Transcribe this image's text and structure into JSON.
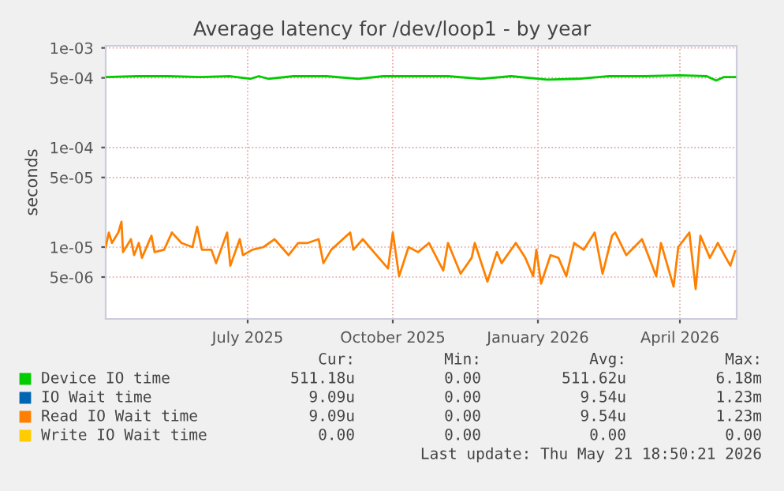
{
  "chart_data": {
    "type": "line",
    "title": "Average latency for /dev/loop1 - by year",
    "ylabel": "seconds",
    "log": "y",
    "xlim": [
      "2025-04-02",
      "2026-05-07"
    ],
    "ylim": [
      1.9e-06,
      0.00105
    ],
    "xticks": [
      {
        "value": "2025-07-01",
        "label": "July 2025"
      },
      {
        "value": "2025-10-01",
        "label": "October 2025"
      },
      {
        "value": "2026-01-01",
        "label": "January 2026"
      },
      {
        "value": "2026-04-01",
        "label": "April 2026"
      }
    ],
    "yticks": [
      {
        "value": 0.001,
        "label": "1e-03"
      },
      {
        "value": 0.0005,
        "label": "5e-04"
      },
      {
        "value": 0.0001,
        "label": "1e-04"
      },
      {
        "value": 5e-05,
        "label": "5e-05"
      },
      {
        "value": 1e-05,
        "label": "1e-05"
      },
      {
        "value": 5e-06,
        "label": "5e-06"
      }
    ],
    "grid": true,
    "legend": "bottom",
    "series": [
      {
        "name": "Device IO time",
        "color": "#00cc00",
        "x": [
          "2025-04-02",
          "2025-04-22",
          "2025-05-12",
          "2025-06-01",
          "2025-06-20",
          "2025-07-03",
          "2025-07-08",
          "2025-07-14",
          "2025-07-30",
          "2025-08-20",
          "2025-09-09",
          "2025-09-25",
          "2025-10-15",
          "2025-11-05",
          "2025-11-26",
          "2025-12-15",
          "2026-01-07",
          "2026-01-27",
          "2026-02-15",
          "2026-03-10",
          "2026-04-01",
          "2026-04-18",
          "2026-04-24",
          "2026-04-29",
          "2026-05-06"
        ],
        "values": [
          0.00051,
          0.00052,
          0.00052,
          0.00051,
          0.00052,
          0.00049,
          0.00052,
          0.00049,
          0.00052,
          0.00052,
          0.00049,
          0.00052,
          0.00052,
          0.00052,
          0.00049,
          0.00052,
          0.00048,
          0.00049,
          0.00052,
          0.00052,
          0.00053,
          0.00052,
          0.00047,
          0.00051,
          0.00051
        ]
      },
      {
        "name": "IO Wait time",
        "color": "#0066b3"
      },
      {
        "name": "Read IO Wait time",
        "color": "#ff8000",
        "x": [
          "2025-04-02",
          "2025-04-04",
          "2025-04-06",
          "2025-04-10",
          "2025-04-12",
          "2025-04-13",
          "2025-04-18",
          "2025-04-20",
          "2025-04-23",
          "2025-04-25",
          "2025-05-01",
          "2025-05-03",
          "2025-05-09",
          "2025-05-14",
          "2025-05-20",
          "2025-05-27",
          "2025-05-30",
          "2025-06-02",
          "2025-06-08",
          "2025-06-11",
          "2025-06-18",
          "2025-06-20",
          "2025-06-26",
          "2025-06-28",
          "2025-07-04",
          "2025-07-11",
          "2025-07-18",
          "2025-07-27",
          "2025-08-02",
          "2025-08-08",
          "2025-08-15",
          "2025-08-18",
          "2025-08-23",
          "2025-09-04",
          "2025-09-06",
          "2025-09-12",
          "2025-09-19",
          "2025-09-28",
          "2025-10-01",
          "2025-10-05",
          "2025-10-11",
          "2025-10-17",
          "2025-10-24",
          "2025-11-02",
          "2025-11-05",
          "2025-11-13",
          "2025-11-20",
          "2025-11-22",
          "2025-11-30",
          "2025-12-06",
          "2025-12-09",
          "2025-12-18",
          "2025-12-24",
          "2025-12-29",
          "2025-12-31",
          "2026-01-03",
          "2026-01-09",
          "2026-01-14",
          "2026-01-19",
          "2026-01-24",
          "2026-01-30",
          "2026-02-06",
          "2026-02-11",
          "2026-02-17",
          "2026-02-19",
          "2026-02-26",
          "2026-03-08",
          "2026-03-17",
          "2026-03-20",
          "2026-03-28",
          "2026-03-31",
          "2026-04-07",
          "2026-04-11",
          "2026-04-14",
          "2026-04-20",
          "2026-04-25",
          "2026-05-03",
          "2026-05-06"
        ],
        "values": [
          1e-05,
          1.4e-05,
          1.1e-05,
          1.4e-05,
          1.8e-05,
          8.9e-06,
          1.2e-05,
          8.3e-06,
          1.1e-05,
          7.8e-06,
          1.3e-05,
          8.9e-06,
          9.4e-06,
          1.4e-05,
          1.1e-05,
          1e-05,
          1.6e-05,
          9.4e-06,
          9.4e-06,
          6.9e-06,
          1.4e-05,
          6.5e-06,
          1.2e-05,
          8.3e-06,
          9.4e-06,
          1e-05,
          1.2e-05,
          8.3e-06,
          1.1e-05,
          1.1e-05,
          1.2e-05,
          6.9e-06,
          9.4e-06,
          1.4e-05,
          9.4e-06,
          1.2e-05,
          8.9e-06,
          6.1e-06,
          1.4e-05,
          5.1e-06,
          1e-05,
          8.9e-06,
          1.1e-05,
          5.8e-06,
          1.1e-05,
          5.4e-06,
          7.8e-06,
          1.1e-05,
          4.5e-06,
          8.9e-06,
          6.9e-06,
          1.1e-05,
          7.8e-06,
          5.1e-06,
          9.4e-06,
          4.3e-06,
          8.3e-06,
          7.8e-06,
          5.1e-06,
          1.1e-05,
          9.4e-06,
          1.4e-05,
          5.4e-06,
          1.3e-05,
          1.4e-05,
          8.3e-06,
          1.2e-05,
          5.1e-06,
          1.1e-05,
          4e-06,
          1e-05,
          1.4e-05,
          3.8e-06,
          1.3e-05,
          7.8e-06,
          1.1e-05,
          6.5e-06,
          9.1e-06
        ]
      },
      {
        "name": "Write IO Wait time",
        "color": "#ffcc00"
      }
    ],
    "annotations": [
      "Cur:",
      "Min:",
      "Avg:",
      "Max:",
      "511.18u",
      "0.00",
      "511.62u",
      "6.18m",
      "9.09u",
      "0.00",
      "9.54u",
      "1.23m",
      "9.09u",
      "0.00",
      "9.54u",
      "1.23m",
      "0.00",
      "0.00",
      "0.00",
      "0.00",
      "Last update: Thu May 21 18:50:21 2026"
    ]
  }
}
